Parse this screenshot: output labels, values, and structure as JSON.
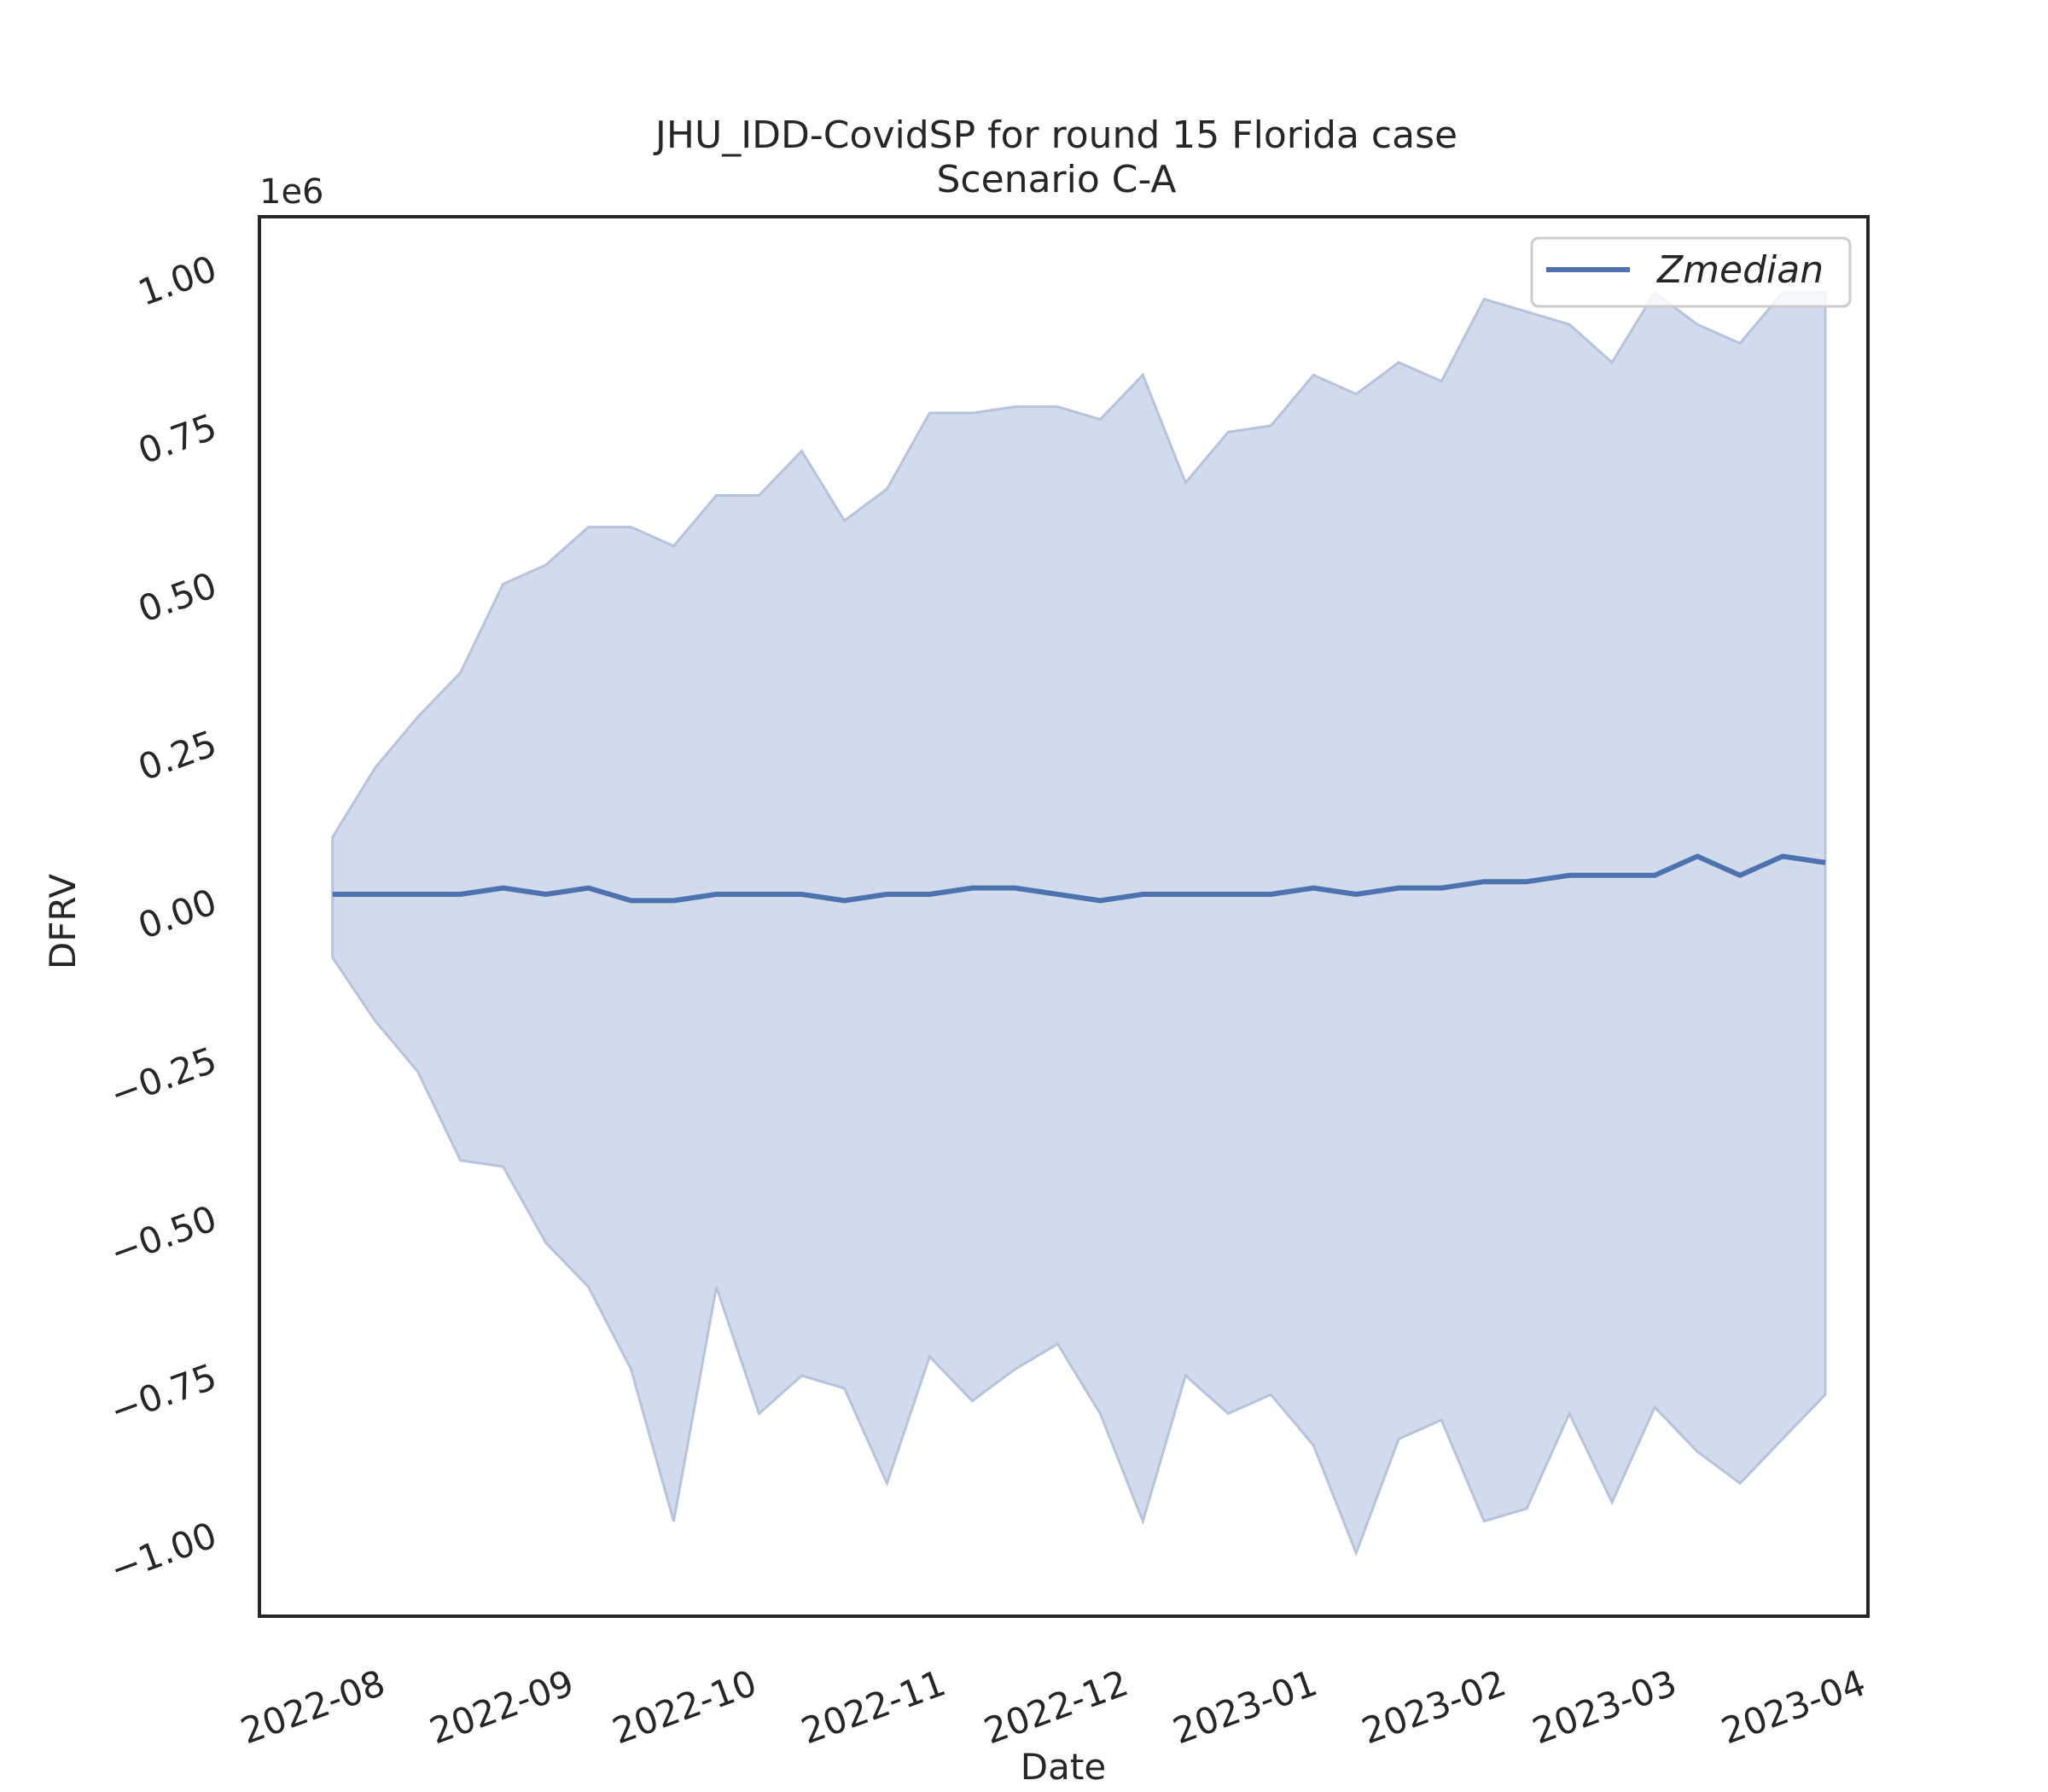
{
  "chart_data": {
    "type": "line",
    "title": "JHU_IDD-CovidSP for round 15 Florida case",
    "subtitle": "Scenario C-A",
    "xlabel": "Date",
    "ylabel": "DFRV",
    "y_offset_label": "1e6",
    "ylim": [
      -1.13,
      1.08
    ],
    "xlim": [
      "2022-07-11",
      "2023-04-01"
    ],
    "x_tick_labels": [
      "2022-08",
      "2022-09",
      "2022-10",
      "2022-11",
      "2022-12",
      "2023-01",
      "2023-02",
      "2023-03",
      "2023-04"
    ],
    "y_tick_labels": [
      "-1.00",
      "-0.75",
      "-0.50",
      "-0.25",
      "0.00",
      "0.25",
      "0.50",
      "0.75",
      "1.00"
    ],
    "grid": false,
    "legend_position": "top-right",
    "colors": {
      "line": "#4c72b0",
      "band": "#d1dbeb",
      "band_edge": "#b5c4de"
    },
    "x": [
      "2022-07-23",
      "2022-07-30",
      "2022-08-06",
      "2022-08-13",
      "2022-08-20",
      "2022-08-27",
      "2022-09-03",
      "2022-09-10",
      "2022-09-17",
      "2022-09-24",
      "2022-10-01",
      "2022-10-08",
      "2022-10-15",
      "2022-10-22",
      "2022-10-29",
      "2022-11-05",
      "2022-11-12",
      "2022-11-19",
      "2022-11-26",
      "2022-12-03",
      "2022-12-10",
      "2022-12-17",
      "2022-12-24",
      "2022-12-31",
      "2023-01-07",
      "2023-01-14",
      "2023-01-21",
      "2023-01-28",
      "2023-02-04",
      "2023-02-11",
      "2023-02-18",
      "2023-02-25",
      "2023-03-04",
      "2023-03-11",
      "2023-03-18",
      "2023-03-25"
    ],
    "series": [
      {
        "name": "Zmedian",
        "values": [
          0.01,
          0.01,
          0.01,
          0.01,
          0.02,
          0.01,
          0.02,
          0.0,
          0.0,
          0.01,
          0.01,
          0.01,
          0.0,
          0.01,
          0.01,
          0.02,
          0.02,
          0.01,
          0.0,
          0.01,
          0.01,
          0.01,
          0.01,
          0.02,
          0.01,
          0.02,
          0.02,
          0.03,
          0.03,
          0.04,
          0.04,
          0.04,
          0.07,
          0.04,
          0.07,
          0.06
        ]
      }
    ],
    "band": {
      "upper": [
        0.1,
        0.21,
        0.29,
        0.36,
        0.5,
        0.53,
        0.59,
        0.59,
        0.56,
        0.64,
        0.64,
        0.71,
        0.6,
        0.65,
        0.77,
        0.77,
        0.78,
        0.78,
        0.76,
        0.83,
        0.66,
        0.74,
        0.75,
        0.83,
        0.8,
        0.85,
        0.82,
        0.95,
        0.93,
        0.91,
        0.85,
        0.96,
        0.91,
        0.88,
        0.96,
        0.96
      ],
      "lower": [
        -0.09,
        -0.19,
        -0.27,
        -0.41,
        -0.42,
        -0.54,
        -0.61,
        -0.74,
        -0.98,
        -0.61,
        -0.81,
        -0.75,
        -0.77,
        -0.92,
        -0.72,
        -0.79,
        -0.74,
        -0.7,
        -0.81,
        -0.98,
        -0.75,
        -0.81,
        -0.78,
        -0.86,
        -1.03,
        -0.85,
        -0.82,
        -0.98,
        -0.96,
        -0.81,
        -0.95,
        -0.8,
        -0.87,
        -0.92,
        -0.85,
        -0.78
      ]
    }
  }
}
